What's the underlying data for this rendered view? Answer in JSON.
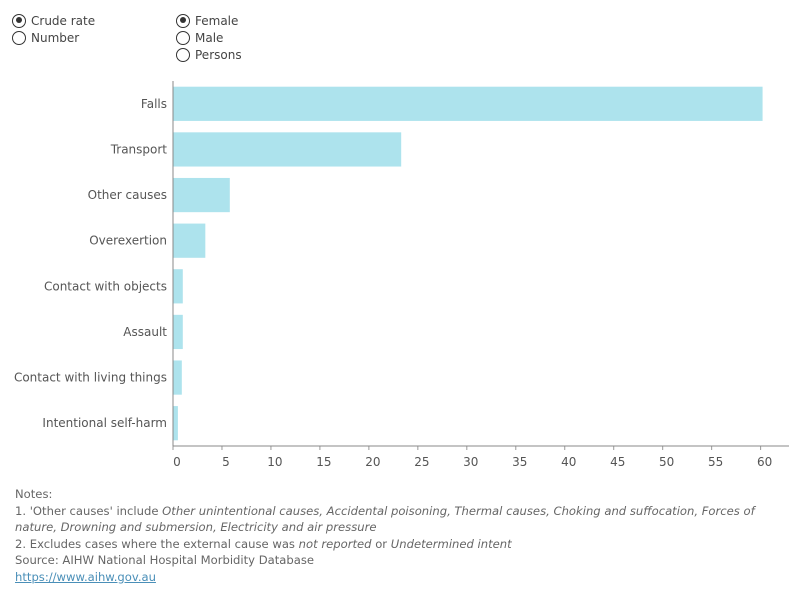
{
  "controls": {
    "measure": {
      "options": [
        {
          "label": "Crude rate",
          "checked": true
        },
        {
          "label": "Number",
          "checked": false
        }
      ]
    },
    "sex": {
      "options": [
        {
          "label": "Female",
          "checked": true
        },
        {
          "label": "Male",
          "checked": false
        },
        {
          "label": "Persons",
          "checked": false
        }
      ]
    }
  },
  "chart_data": {
    "type": "bar",
    "orientation": "horizontal",
    "categories": [
      "Falls",
      "Transport",
      "Other causes",
      "Overexertion",
      "Contact with objects",
      "Assault",
      "Contact with living things",
      "Intentional self-harm"
    ],
    "values": [
      60.2,
      23.3,
      5.8,
      3.3,
      1.0,
      1.0,
      0.9,
      0.5
    ],
    "xlim": [
      0,
      63
    ],
    "xticks": [
      0,
      5,
      10,
      15,
      20,
      25,
      30,
      35,
      40,
      45,
      50,
      55,
      60
    ],
    "title": "",
    "xlabel": "",
    "ylabel": "",
    "bar_color": "#ade3ed",
    "grid": false
  },
  "notes": {
    "heading": "Notes:",
    "note1_prefix": "1. 'Other causes' include ",
    "note1_italic": "Other unintentional causes, Accidental poisoning, Thermal causes, Choking and suffocation, Forces of nature, Drowning and submersion, Electricity and air pressure",
    "note2_prefix": "2. Excludes cases where the external cause was ",
    "note2_italic1": "not reported",
    "note2_mid": " or ",
    "note2_italic2": "Undetermined intent",
    "source": "Source: AIHW National Hospital Morbidity Database",
    "link": "https://www.aihw.gov.au"
  }
}
